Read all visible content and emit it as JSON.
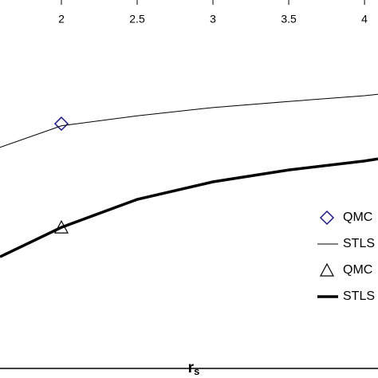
{
  "chart_data": {
    "type": "line",
    "xlabel": "r",
    "xlabel_sub": "s",
    "xlim": [
      1.595,
      4.089
    ],
    "xticks": [
      2,
      2.5,
      3,
      3.5,
      4
    ],
    "ylim": [
      0,
      100
    ],
    "series": [
      {
        "name": "QMC",
        "color": "#1a1a80",
        "marker": "diamond",
        "x": [
          2
        ],
        "values": [
          68.2
        ]
      },
      {
        "name": "STLS",
        "color": "#000000",
        "width": 1,
        "x": [
          1.595,
          2,
          2.5,
          3,
          3.5,
          4,
          4.089
        ],
        "values": [
          61.6,
          67.6,
          70.4,
          72.7,
          74.4,
          76,
          76.4
        ]
      },
      {
        "name": "QMC",
        "color": "#000000",
        "marker": "triangle",
        "x": [
          2
        ],
        "values": [
          39.3
        ]
      },
      {
        "name": "STLS",
        "color": "#000000",
        "width": 3.5,
        "x": [
          1.595,
          2,
          2.5,
          3,
          3.5,
          4,
          4.089
        ],
        "values": [
          31.1,
          39.3,
          47.1,
          52,
          55.3,
          57.8,
          58.4
        ]
      }
    ]
  }
}
